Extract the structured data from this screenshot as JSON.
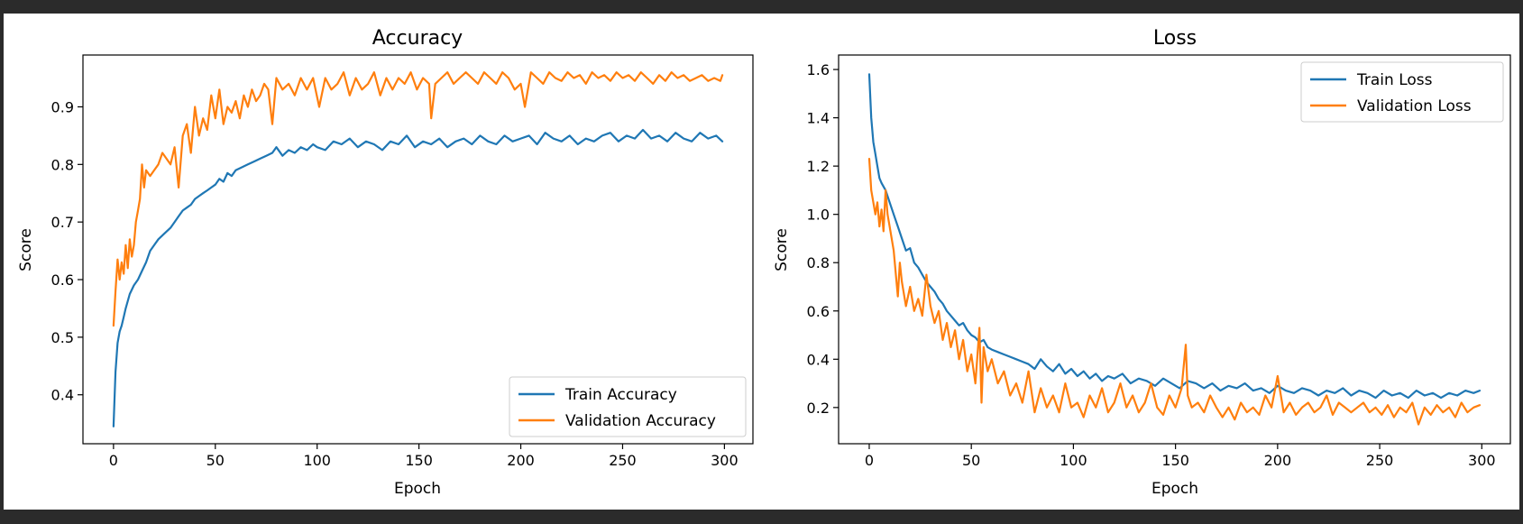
{
  "colors": {
    "train": "#1f77b4",
    "validation": "#ff7f0e",
    "frame": "#2b2b2b",
    "background": "#ffffff"
  },
  "chart_data": [
    {
      "type": "line",
      "title": "Accuracy",
      "xlabel": "Epoch",
      "ylabel": "Score",
      "xlim": [
        -15,
        314
      ],
      "ylim": [
        0.315,
        0.99
      ],
      "xticks": [
        0,
        50,
        100,
        150,
        200,
        250,
        300
      ],
      "yticks": [
        0.4,
        0.5,
        0.6,
        0.7,
        0.8,
        0.9
      ],
      "grid": false,
      "legend_position": "lower-right",
      "series": [
        {
          "name": "Train Accuracy",
          "color": "#1f77b4",
          "x": [
            0,
            1,
            2,
            3,
            4,
            5,
            6,
            8,
            10,
            12,
            14,
            16,
            18,
            20,
            22,
            25,
            28,
            30,
            32,
            34,
            36,
            38,
            40,
            42,
            44,
            46,
            48,
            50,
            52,
            54,
            56,
            58,
            60,
            63,
            66,
            69,
            72,
            75,
            78,
            80,
            83,
            86,
            89,
            92,
            95,
            98,
            100,
            104,
            108,
            112,
            116,
            120,
            124,
            128,
            132,
            136,
            140,
            144,
            148,
            152,
            156,
            160,
            164,
            168,
            172,
            176,
            180,
            184,
            188,
            192,
            196,
            200,
            204,
            208,
            212,
            216,
            220,
            224,
            228,
            232,
            236,
            240,
            244,
            248,
            252,
            256,
            260,
            264,
            268,
            272,
            276,
            280,
            284,
            288,
            292,
            296,
            299
          ],
          "y": [
            0.345,
            0.44,
            0.49,
            0.51,
            0.52,
            0.535,
            0.55,
            0.575,
            0.59,
            0.6,
            0.615,
            0.63,
            0.65,
            0.66,
            0.67,
            0.68,
            0.69,
            0.7,
            0.71,
            0.72,
            0.725,
            0.73,
            0.74,
            0.745,
            0.75,
            0.755,
            0.76,
            0.765,
            0.775,
            0.77,
            0.785,
            0.78,
            0.79,
            0.795,
            0.8,
            0.805,
            0.81,
            0.815,
            0.82,
            0.83,
            0.815,
            0.825,
            0.82,
            0.83,
            0.825,
            0.835,
            0.83,
            0.825,
            0.84,
            0.835,
            0.845,
            0.83,
            0.84,
            0.835,
            0.825,
            0.84,
            0.835,
            0.85,
            0.83,
            0.84,
            0.835,
            0.845,
            0.83,
            0.84,
            0.845,
            0.835,
            0.85,
            0.84,
            0.835,
            0.85,
            0.84,
            0.845,
            0.85,
            0.835,
            0.855,
            0.845,
            0.84,
            0.85,
            0.835,
            0.845,
            0.84,
            0.85,
            0.855,
            0.84,
            0.85,
            0.845,
            0.86,
            0.845,
            0.85,
            0.84,
            0.855,
            0.845,
            0.84,
            0.855,
            0.845,
            0.85,
            0.84
          ]
        },
        {
          "name": "Validation Accuracy",
          "color": "#ff7f0e",
          "x": [
            0,
            1,
            2,
            3,
            4,
            5,
            6,
            7,
            8,
            9,
            10,
            11,
            12,
            13,
            14,
            15,
            16,
            18,
            20,
            22,
            24,
            26,
            28,
            30,
            32,
            34,
            36,
            38,
            40,
            42,
            44,
            46,
            48,
            50,
            52,
            54,
            56,
            58,
            60,
            62,
            64,
            66,
            68,
            70,
            72,
            74,
            76,
            78,
            80,
            83,
            86,
            89,
            92,
            95,
            98,
            101,
            104,
            107,
            110,
            113,
            116,
            119,
            122,
            125,
            128,
            131,
            134,
            137,
            140,
            143,
            146,
            149,
            152,
            155,
            156,
            158,
            161,
            164,
            167,
            170,
            173,
            176,
            179,
            182,
            185,
            188,
            191,
            194,
            197,
            200,
            202,
            205,
            208,
            211,
            214,
            217,
            220,
            223,
            226,
            229,
            232,
            235,
            238,
            241,
            244,
            247,
            250,
            253,
            256,
            259,
            262,
            265,
            268,
            271,
            274,
            277,
            280,
            283,
            286,
            289,
            292,
            295,
            298,
            299
          ],
          "y": [
            0.52,
            0.58,
            0.635,
            0.6,
            0.63,
            0.61,
            0.66,
            0.62,
            0.67,
            0.64,
            0.66,
            0.7,
            0.72,
            0.74,
            0.8,
            0.76,
            0.79,
            0.78,
            0.79,
            0.8,
            0.82,
            0.81,
            0.8,
            0.83,
            0.76,
            0.85,
            0.87,
            0.82,
            0.9,
            0.85,
            0.88,
            0.86,
            0.92,
            0.88,
            0.93,
            0.87,
            0.9,
            0.89,
            0.91,
            0.88,
            0.92,
            0.9,
            0.93,
            0.91,
            0.92,
            0.94,
            0.93,
            0.87,
            0.95,
            0.93,
            0.94,
            0.92,
            0.95,
            0.93,
            0.95,
            0.9,
            0.95,
            0.93,
            0.94,
            0.96,
            0.92,
            0.95,
            0.93,
            0.94,
            0.96,
            0.92,
            0.95,
            0.93,
            0.95,
            0.94,
            0.96,
            0.93,
            0.95,
            0.94,
            0.88,
            0.94,
            0.95,
            0.96,
            0.94,
            0.95,
            0.96,
            0.95,
            0.94,
            0.96,
            0.95,
            0.94,
            0.96,
            0.95,
            0.93,
            0.94,
            0.9,
            0.96,
            0.95,
            0.94,
            0.96,
            0.95,
            0.945,
            0.96,
            0.95,
            0.955,
            0.94,
            0.96,
            0.95,
            0.955,
            0.945,
            0.96,
            0.95,
            0.955,
            0.945,
            0.96,
            0.95,
            0.94,
            0.955,
            0.945,
            0.96,
            0.95,
            0.955,
            0.945,
            0.95,
            0.955,
            0.945,
            0.95,
            0.945,
            0.955
          ]
        }
      ]
    },
    {
      "type": "line",
      "title": "Loss",
      "xlabel": "Epoch",
      "ylabel": "Score",
      "xlim": [
        -15,
        314
      ],
      "ylim": [
        0.05,
        1.66
      ],
      "xticks": [
        0,
        50,
        100,
        150,
        200,
        250,
        300
      ],
      "yticks": [
        0.2,
        0.4,
        0.6,
        0.8,
        1.0,
        1.2,
        1.4,
        1.6
      ],
      "grid": false,
      "legend_position": "upper-right",
      "series": [
        {
          "name": "Train Loss",
          "color": "#1f77b4",
          "x": [
            0,
            1,
            2,
            3,
            4,
            5,
            6,
            8,
            10,
            12,
            14,
            16,
            18,
            20,
            22,
            24,
            26,
            28,
            30,
            32,
            34,
            36,
            38,
            40,
            42,
            44,
            46,
            48,
            50,
            52,
            54,
            56,
            58,
            60,
            63,
            66,
            69,
            72,
            75,
            78,
            81,
            84,
            87,
            90,
            93,
            96,
            99,
            102,
            105,
            108,
            111,
            114,
            117,
            120,
            124,
            128,
            132,
            136,
            140,
            144,
            148,
            152,
            156,
            160,
            164,
            168,
            172,
            176,
            180,
            184,
            188,
            192,
            196,
            200,
            204,
            208,
            212,
            216,
            220,
            224,
            228,
            232,
            236,
            240,
            244,
            248,
            252,
            256,
            260,
            264,
            268,
            272,
            276,
            280,
            284,
            288,
            292,
            296,
            299
          ],
          "y": [
            1.58,
            1.4,
            1.3,
            1.25,
            1.2,
            1.15,
            1.13,
            1.1,
            1.05,
            1.0,
            0.95,
            0.9,
            0.85,
            0.86,
            0.8,
            0.78,
            0.75,
            0.72,
            0.7,
            0.68,
            0.65,
            0.63,
            0.6,
            0.58,
            0.56,
            0.54,
            0.55,
            0.52,
            0.5,
            0.49,
            0.47,
            0.48,
            0.45,
            0.44,
            0.43,
            0.42,
            0.41,
            0.4,
            0.39,
            0.38,
            0.36,
            0.4,
            0.37,
            0.35,
            0.38,
            0.34,
            0.36,
            0.33,
            0.35,
            0.32,
            0.34,
            0.31,
            0.33,
            0.32,
            0.34,
            0.3,
            0.32,
            0.31,
            0.29,
            0.32,
            0.3,
            0.28,
            0.31,
            0.3,
            0.28,
            0.3,
            0.27,
            0.29,
            0.28,
            0.3,
            0.27,
            0.28,
            0.26,
            0.29,
            0.27,
            0.26,
            0.28,
            0.27,
            0.25,
            0.27,
            0.26,
            0.28,
            0.25,
            0.27,
            0.26,
            0.24,
            0.27,
            0.25,
            0.26,
            0.24,
            0.27,
            0.25,
            0.26,
            0.24,
            0.26,
            0.25,
            0.27,
            0.26,
            0.27
          ]
        },
        {
          "name": "Validation Loss",
          "color": "#ff7f0e",
          "x": [
            0,
            1,
            2,
            3,
            4,
            5,
            6,
            7,
            8,
            9,
            10,
            12,
            14,
            15,
            16,
            18,
            20,
            22,
            24,
            26,
            28,
            30,
            32,
            34,
            36,
            38,
            40,
            42,
            44,
            46,
            48,
            50,
            52,
            54,
            55,
            56,
            58,
            60,
            63,
            66,
            69,
            72,
            75,
            78,
            81,
            84,
            87,
            90,
            93,
            96,
            99,
            102,
            105,
            108,
            111,
            114,
            117,
            120,
            123,
            126,
            129,
            132,
            135,
            138,
            141,
            144,
            147,
            150,
            153,
            155,
            156,
            158,
            161,
            164,
            167,
            170,
            173,
            176,
            179,
            182,
            185,
            188,
            191,
            194,
            197,
            200,
            203,
            206,
            209,
            212,
            215,
            218,
            221,
            224,
            227,
            230,
            233,
            236,
            239,
            242,
            245,
            248,
            251,
            254,
            257,
            260,
            263,
            266,
            269,
            272,
            275,
            278,
            281,
            284,
            287,
            290,
            293,
            296,
            299
          ],
          "y": [
            1.23,
            1.1,
            1.05,
            1.0,
            1.05,
            0.95,
            1.02,
            0.93,
            1.1,
            1.0,
            0.95,
            0.85,
            0.66,
            0.8,
            0.72,
            0.62,
            0.7,
            0.6,
            0.65,
            0.58,
            0.75,
            0.62,
            0.55,
            0.6,
            0.48,
            0.55,
            0.45,
            0.52,
            0.4,
            0.48,
            0.35,
            0.42,
            0.3,
            0.53,
            0.22,
            0.45,
            0.35,
            0.4,
            0.3,
            0.35,
            0.25,
            0.3,
            0.22,
            0.35,
            0.18,
            0.28,
            0.2,
            0.25,
            0.18,
            0.3,
            0.2,
            0.22,
            0.16,
            0.25,
            0.2,
            0.28,
            0.18,
            0.22,
            0.3,
            0.2,
            0.25,
            0.18,
            0.22,
            0.3,
            0.2,
            0.17,
            0.25,
            0.2,
            0.28,
            0.46,
            0.25,
            0.2,
            0.22,
            0.18,
            0.25,
            0.2,
            0.16,
            0.2,
            0.15,
            0.22,
            0.18,
            0.2,
            0.17,
            0.25,
            0.2,
            0.33,
            0.18,
            0.22,
            0.17,
            0.2,
            0.22,
            0.18,
            0.2,
            0.25,
            0.17,
            0.22,
            0.2,
            0.18,
            0.2,
            0.22,
            0.18,
            0.2,
            0.17,
            0.21,
            0.16,
            0.2,
            0.18,
            0.22,
            0.13,
            0.2,
            0.17,
            0.21,
            0.18,
            0.2,
            0.16,
            0.22,
            0.18,
            0.2,
            0.21
          ]
        }
      ]
    }
  ]
}
